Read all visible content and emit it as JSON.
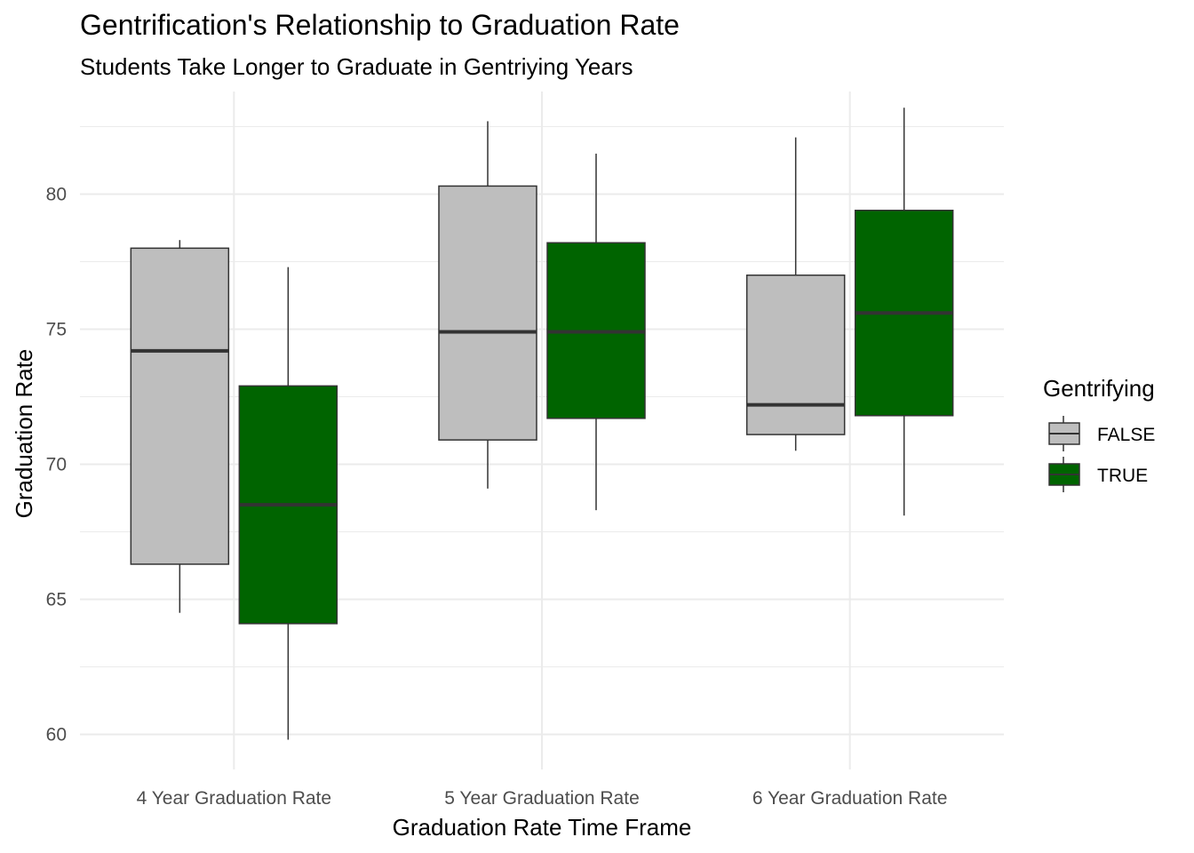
{
  "chart_data": {
    "type": "boxplot",
    "title": "Gentrification's Relationship to Graduation Rate",
    "subtitle": "Students Take Longer to Graduate in Gentriying Years",
    "xlabel": "Graduation Rate Time Frame",
    "ylabel": "Graduation Rate",
    "ylim": [
      58.7,
      83.8
    ],
    "yticks": [
      60,
      65,
      70,
      75,
      80
    ],
    "grid": true,
    "legend_position": "right",
    "legend_title": "Gentrifying",
    "categories": [
      "4 Year Graduation Rate",
      "5 Year Graduation Rate",
      "6 Year Graduation Rate"
    ],
    "series": [
      {
        "name": "FALSE",
        "color": "#bebebe",
        "boxes": [
          {
            "min": 64.5,
            "q1": 66.3,
            "median": 74.2,
            "q3": 78.0,
            "max": 78.3
          },
          {
            "min": 69.1,
            "q1": 70.9,
            "median": 74.9,
            "q3": 80.3,
            "max": 82.7
          },
          {
            "min": 70.5,
            "q1": 71.1,
            "median": 72.2,
            "q3": 77.0,
            "max": 82.1
          }
        ]
      },
      {
        "name": "TRUE",
        "color": "#006400",
        "boxes": [
          {
            "min": 59.8,
            "q1": 64.1,
            "median": 68.5,
            "q3": 72.9,
            "max": 77.3
          },
          {
            "min": 68.3,
            "q1": 71.7,
            "median": 74.9,
            "q3": 78.2,
            "max": 81.5
          },
          {
            "min": 68.1,
            "q1": 71.8,
            "median": 75.6,
            "q3": 79.4,
            "max": 83.2
          }
        ]
      }
    ]
  }
}
